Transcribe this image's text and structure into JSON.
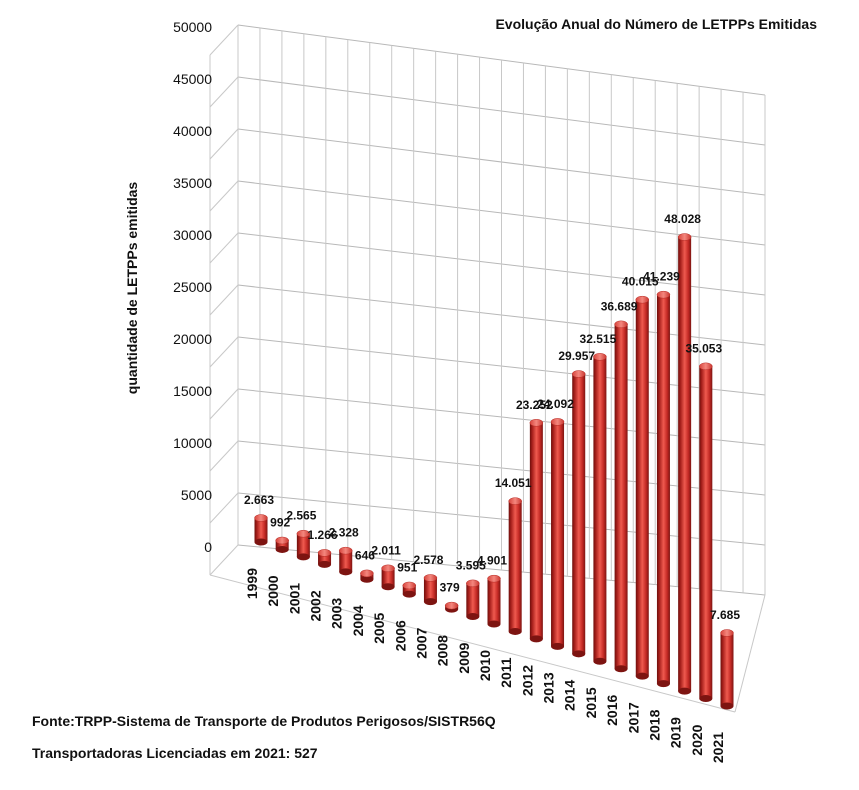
{
  "chart_data": {
    "type": "bar",
    "title": "Evolução Anual do Número de LETPPs Emitidas",
    "ylabel": "quantidade de LETPPs emitidas",
    "xlabel": "",
    "ylim": [
      0,
      50000
    ],
    "yticks": [
      "0",
      "5000",
      "10000",
      "15000",
      "20000",
      "25000",
      "30000",
      "35000",
      "40000",
      "45000",
      "50000"
    ],
    "categories": [
      "1999",
      "2000",
      "2001",
      "2002",
      "2003",
      "2004",
      "2005",
      "2006",
      "2007",
      "2008",
      "2009",
      "2010",
      "2011",
      "2012",
      "2013",
      "2014",
      "2015",
      "2016",
      "2017",
      "2018",
      "2019",
      "2020",
      "2021"
    ],
    "values": [
      2663,
      992,
      2565,
      1266,
      2328,
      646,
      2011,
      951,
      2578,
      379,
      3595,
      4901,
      14051,
      23252,
      24092,
      29957,
      32515,
      36689,
      40015,
      41239,
      48028,
      35053,
      7685
    ],
    "data_labels": [
      "2.663",
      "992",
      "2.565",
      "1.266",
      "2.328",
      "646",
      "2.011",
      "951",
      "2.578",
      "379",
      "3.595",
      "4.901",
      "14.051",
      "23.252",
      "24.092",
      "29.957",
      "32.515",
      "36.689",
      "40.015",
      "41.239",
      "48.028",
      "35.053",
      "7.685"
    ],
    "bar_color": "#c42a25",
    "grid": true,
    "style": "3d-cylinder"
  },
  "footer": {
    "source": "Fonte:TRPP-Sistema de Transporte de Produtos Perigosos/SISTR56Q",
    "licensed": "Transportadoras Licenciadas em  2021: 527"
  }
}
